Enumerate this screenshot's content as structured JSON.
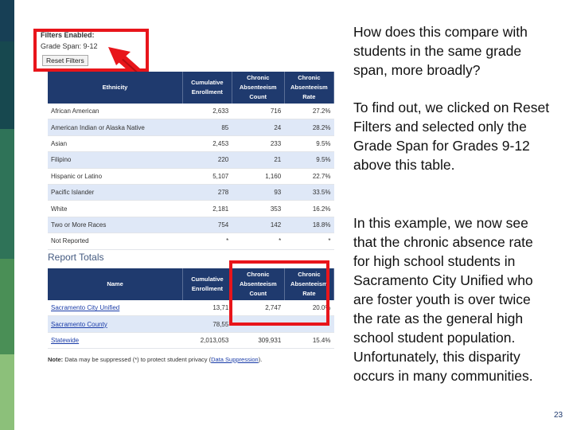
{
  "filters": {
    "title": "Filters Enabled:",
    "grade_span": "Grade Span: 9-12",
    "reset_label": "Reset Filters"
  },
  "ethnicity_table": {
    "headers": [
      "Ethnicity",
      "Cumulative Enrollment",
      "Chronic Absenteeism Count",
      "Chronic Absenteeism Rate"
    ],
    "rows": [
      [
        "African American",
        "2,633",
        "716",
        "27.2%"
      ],
      [
        "American Indian or Alaska Native",
        "85",
        "24",
        "28.2%"
      ],
      [
        "Asian",
        "2,453",
        "233",
        "9.5%"
      ],
      [
        "Filipino",
        "220",
        "21",
        "9.5%"
      ],
      [
        "Hispanic or Latino",
        "5,107",
        "1,160",
        "22.7%"
      ],
      [
        "Pacific Islander",
        "278",
        "93",
        "33.5%"
      ],
      [
        "White",
        "2,181",
        "353",
        "16.2%"
      ],
      [
        "Two or More Races",
        "754",
        "142",
        "18.8%"
      ],
      [
        "Not Reported",
        "*",
        "*",
        "*"
      ]
    ]
  },
  "report_totals": {
    "title": "Report Totals",
    "headers": [
      "Name",
      "Cumulative Enrollment",
      "Chronic Absenteeism Count",
      "Chronic Absenteeism Rate"
    ],
    "rows": [
      [
        "Sacramento City Unified",
        "13,71",
        "2,747",
        "20.0%"
      ],
      [
        "Sacramento County",
        "78,55",
        "",
        ""
      ],
      [
        "Statewide",
        "2,013,053",
        "309,931",
        "15.4%"
      ]
    ]
  },
  "note": {
    "bold": "Note:",
    "text": " Data may be suppressed (*) to protect student privacy (",
    "link": "Data Suppression",
    "end": ")."
  },
  "paragraphs": {
    "p1": "How does this compare with students in the same grade span, more broadly?",
    "p2": "To find out, we clicked on Reset Filters and selected only the Grade Span for Grades 9-12 above this table.",
    "p3": "In this example, we now see that the chronic absence rate for high school students in Sacramento City Unified who are foster youth is over twice the rate as the general high school student population. Unfortunately, this disparity occurs in many communities."
  },
  "page_number": "23",
  "colors": {
    "header_bg": "#1f3a6e",
    "alt_row": "#dfe8f7",
    "highlight": "#e8151b",
    "stripe_dark": "#17484f",
    "stripe_green": "#4a8f56",
    "stripe_light": "#8cc07a"
  }
}
